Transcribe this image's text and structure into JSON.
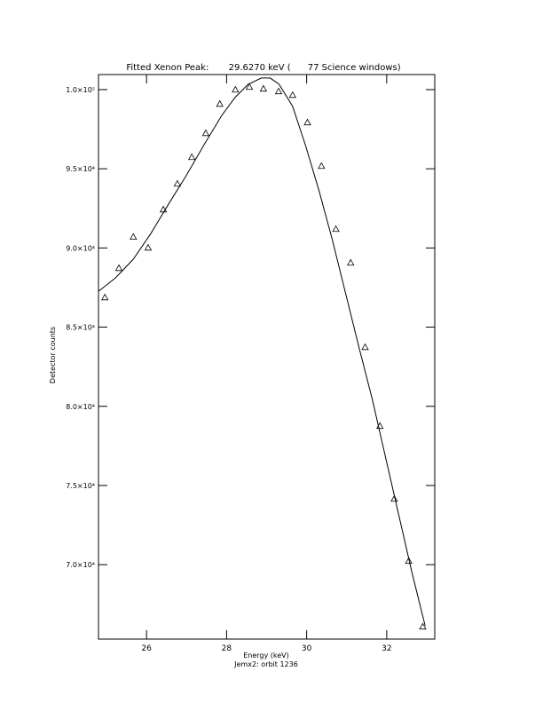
{
  "chart_data": {
    "type": "scatter",
    "title": "Fitted Xenon Peak:       29.6270 keV (      77 Science windows)",
    "x_label": "Energy (keV)",
    "subtitle": "Jemx2: orbit 1236",
    "y_label": "Detector counts",
    "xlim": [
      24.8,
      33.2
    ],
    "ylim": [
      65300,
      100950
    ],
    "xticks": [
      26,
      28,
      30,
      32
    ],
    "yticks": [
      {
        "value": 70000,
        "label": "7.0×10⁴"
      },
      {
        "value": 75000,
        "label": "7.5×10⁴"
      },
      {
        "value": 80000,
        "label": "8.0×10⁴"
      },
      {
        "value": 85000,
        "label": "8.5×10⁴"
      },
      {
        "value": 90000,
        "label": "9.0×10⁴"
      },
      {
        "value": 95000,
        "label": "9.5×10⁴"
      },
      {
        "value": 100000,
        "label": "1.0×10⁵"
      }
    ],
    "grid": false,
    "series": [
      {
        "style": "markers",
        "marker": "triangle",
        "color": "#000000",
        "x": [
          24.96,
          25.31,
          25.67,
          26.04,
          26.42,
          26.77,
          27.13,
          27.48,
          27.83,
          28.22,
          28.57,
          28.92,
          29.3,
          29.65,
          30.02,
          30.37,
          30.73,
          31.1,
          31.46,
          31.83,
          32.19,
          32.55,
          32.9
        ],
        "values": [
          86880,
          88730,
          90700,
          90020,
          92430,
          94060,
          95740,
          97250,
          99100,
          100000,
          100170,
          100060,
          99890,
          99660,
          97930,
          95180,
          91200,
          89070,
          83740,
          78760,
          74160,
          70240,
          66090
        ]
      },
      {
        "style": "line",
        "color": "#000000",
        "x": [
          24.81,
          25.23,
          25.67,
          26.11,
          26.55,
          26.99,
          27.44,
          27.88,
          28.21,
          28.54,
          28.87,
          29.09,
          29.31,
          29.65,
          29.98,
          30.31,
          30.64,
          30.97,
          31.3,
          31.64,
          31.97,
          32.3,
          32.63,
          32.96
        ],
        "values": [
          87280,
          88120,
          89290,
          90920,
          92770,
          94560,
          96530,
          98370,
          99500,
          100340,
          100730,
          100730,
          100340,
          98940,
          96410,
          93610,
          90530,
          87160,
          83800,
          80440,
          76790,
          73150,
          69510,
          66140
        ]
      }
    ]
  }
}
